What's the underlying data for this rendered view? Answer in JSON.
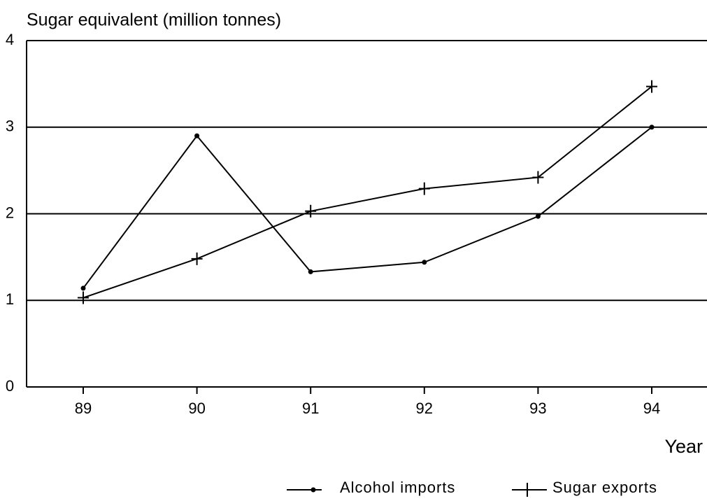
{
  "chart_data": {
    "type": "line",
    "y_label": "Sugar equivalent (million tonnes)",
    "x_label": "Year",
    "categories": [
      "89",
      "90",
      "91",
      "92",
      "93",
      "94"
    ],
    "series": [
      {
        "name": "Alcohol imports",
        "color": "#000000",
        "marker": "dot",
        "values": [
          1.14,
          2.9,
          1.33,
          1.44,
          1.97,
          3.0
        ]
      },
      {
        "name": "Sugar exports",
        "color": "#000000",
        "marker": "plus",
        "values": [
          1.03,
          1.48,
          2.03,
          2.29,
          2.42,
          3.47
        ]
      }
    ],
    "ylim": [
      0,
      4
    ],
    "yticks": [
      0,
      1,
      2,
      3,
      4
    ],
    "grid": true,
    "legend": "bottom right"
  }
}
